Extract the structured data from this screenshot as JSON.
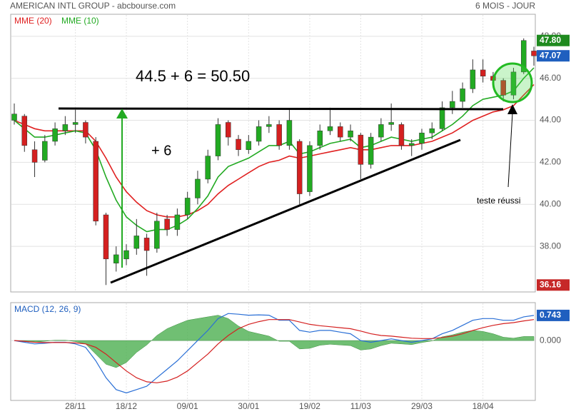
{
  "chart_data": [
    {
      "type": "candlestick",
      "title": "AMERICAN INTL GROUP - abcbourse.com",
      "subtitle": "6 MOIS - JOUR",
      "up_color": "#22aa22",
      "down_color": "#d42020",
      "open": [
        44.0,
        44.2,
        42.6,
        42.1,
        43.0,
        43.5,
        43.8,
        43.9,
        43.0,
        39.5,
        37.2,
        37.4,
        37.9,
        38.4,
        37.9,
        39.3,
        38.8,
        39.5,
        40.3,
        41.2,
        42.3,
        43.9,
        43.1,
        42.6,
        43.0,
        43.7,
        43.8,
        42.8,
        43.0,
        40.6,
        42.8,
        43.5,
        43.7,
        43.2,
        43.3,
        41.9,
        43.2,
        43.8,
        43.8,
        42.8,
        42.9,
        43.4,
        43.6,
        44.6,
        44.9,
        45.5,
        46.4,
        46.1,
        45.9,
        45.2,
        46.3,
        47.3
      ],
      "high": [
        44.8,
        44.3,
        43.0,
        43.3,
        43.9,
        44.2,
        44.5,
        44.0,
        43.2,
        39.6,
        38.0,
        38.1,
        39.3,
        38.6,
        39.6,
        39.5,
        39.8,
        40.6,
        41.6,
        42.6,
        44.1,
        44.0,
        43.3,
        43.3,
        44.0,
        44.2,
        44.0,
        44.5,
        43.1,
        43.0,
        43.8,
        44.6,
        43.9,
        43.8,
        43.4,
        43.4,
        44.1,
        44.8,
        43.9,
        43.1,
        43.6,
        43.9,
        44.9,
        45.4,
        45.8,
        46.9,
        46.9,
        46.3,
        46.0,
        46.5,
        47.9,
        47.5
      ],
      "low": [
        43.8,
        42.5,
        41.3,
        42.0,
        42.8,
        43.3,
        43.4,
        42.9,
        39.0,
        36.16,
        36.8,
        37.1,
        37.6,
        36.6,
        37.7,
        38.5,
        38.5,
        39.3,
        40.0,
        41.0,
        42.1,
        42.8,
        42.3,
        42.4,
        42.8,
        43.4,
        42.6,
        42.6,
        40.0,
        40.4,
        42.6,
        43.3,
        43.0,
        43.0,
        41.2,
        41.7,
        43.0,
        43.5,
        42.6,
        42.3,
        42.6,
        43.1,
        43.5,
        44.3,
        44.6,
        45.3,
        45.8,
        45.6,
        44.9,
        45.0,
        46.2,
        46.6
      ],
      "close": [
        44.3,
        42.8,
        42.0,
        43.0,
        43.6,
        43.8,
        43.9,
        43.2,
        39.2,
        37.4,
        37.6,
        37.8,
        38.5,
        37.8,
        39.2,
        38.8,
        39.5,
        40.3,
        41.2,
        42.3,
        43.8,
        43.2,
        42.6,
        43.0,
        43.7,
        43.8,
        42.8,
        44.0,
        40.5,
        42.8,
        43.5,
        43.7,
        43.2,
        43.5,
        41.9,
        43.2,
        43.8,
        43.9,
        42.8,
        42.9,
        43.4,
        43.6,
        44.6,
        44.9,
        45.5,
        46.4,
        46.1,
        45.9,
        45.2,
        46.3,
        47.8,
        47.07
      ],
      "series": [
        {
          "name": "MME (20)",
          "color": "#e02020",
          "values": [
            44.0,
            43.8,
            43.6,
            43.5,
            43.5,
            43.5,
            43.5,
            43.5,
            43.0,
            42.2,
            41.3,
            40.6,
            40.1,
            39.7,
            39.5,
            39.4,
            39.4,
            39.5,
            39.7,
            40.0,
            40.5,
            40.9,
            41.2,
            41.5,
            41.8,
            42.0,
            42.1,
            42.3,
            42.2,
            42.3,
            42.4,
            42.5,
            42.6,
            42.7,
            42.6,
            42.6,
            42.7,
            42.8,
            42.8,
            42.8,
            42.9,
            43.0,
            43.2,
            43.4,
            43.7,
            44.0,
            44.2,
            44.4,
            44.5,
            44.7,
            45.2,
            45.7
          ]
        },
        {
          "name": "MME (10)",
          "color": "#22aa22",
          "values": [
            44.0,
            43.6,
            43.2,
            43.2,
            43.3,
            43.4,
            43.5,
            43.4,
            42.6,
            41.3,
            40.2,
            39.4,
            39.0,
            38.7,
            38.8,
            38.8,
            39.0,
            39.3,
            39.8,
            40.4,
            41.3,
            41.8,
            42.0,
            42.2,
            42.5,
            42.8,
            42.8,
            43.0,
            42.4,
            42.5,
            42.7,
            42.9,
            43.0,
            43.1,
            42.7,
            42.8,
            43.0,
            43.2,
            43.1,
            43.0,
            43.1,
            43.2,
            43.5,
            43.8,
            44.2,
            44.7,
            45.0,
            45.1,
            45.2,
            45.4,
            46.0,
            46.5
          ]
        }
      ],
      "ylim": [
        36.0,
        48.3
      ],
      "yticks": [
        {
          "value": 38,
          "label": "38.00"
        },
        {
          "value": 40,
          "label": "40.00"
        },
        {
          "value": 42,
          "label": "42.00"
        },
        {
          "value": 44,
          "label": "44.00"
        },
        {
          "value": 46,
          "label": "46.00"
        },
        {
          "value": 48,
          "label": "48.00"
        }
      ],
      "markers": [
        {
          "value": 47.8,
          "label": "47.80",
          "color": "#1f8a1f"
        },
        {
          "value": 47.07,
          "label": "47.07",
          "color": "#1f5fbf"
        },
        {
          "value": 36.16,
          "label": "36.16",
          "color": "#c62828"
        }
      ],
      "annotations": [
        "44.5 + 6 = 50.50",
        "+ 6",
        "teste réussi"
      ],
      "grid": true
    },
    {
      "type": "line",
      "title": "MACD (12, 26, 9)",
      "categories": [
        null,
        null,
        null,
        null,
        null,
        null,
        "28/11",
        null,
        null,
        null,
        null,
        "18/12",
        null,
        null,
        null,
        null,
        null,
        "09/01",
        null,
        null,
        null,
        null,
        null,
        "30/01",
        null,
        null,
        null,
        null,
        null,
        "19/02",
        null,
        null,
        null,
        null,
        "11/03",
        null,
        null,
        null,
        null,
        null,
        "29/03",
        null,
        null,
        null,
        null,
        null,
        "18/04",
        null,
        null,
        null,
        null,
        null
      ],
      "series": [
        {
          "color": "#2a6fd6",
          "values": [
            0.0,
            -0.05,
            -0.1,
            -0.08,
            -0.05,
            -0.05,
            -0.1,
            -0.2,
            -0.6,
            -1.1,
            -1.45,
            -1.55,
            -1.45,
            -1.35,
            -1.1,
            -0.85,
            -0.6,
            -0.3,
            0.0,
            0.3,
            0.65,
            0.8,
            0.78,
            0.75,
            0.76,
            0.75,
            0.6,
            0.6,
            0.3,
            0.25,
            0.3,
            0.3,
            0.25,
            0.2,
            0.0,
            -0.05,
            0.0,
            0.05,
            0.0,
            -0.05,
            0.0,
            0.05,
            0.2,
            0.3,
            0.45,
            0.6,
            0.65,
            0.65,
            0.6,
            0.6,
            0.7,
            0.743
          ]
        },
        {
          "color": "#d42020",
          "values": [
            0.0,
            -0.02,
            -0.05,
            -0.06,
            -0.06,
            -0.06,
            -0.07,
            -0.1,
            -0.2,
            -0.4,
            -0.65,
            -0.9,
            -1.1,
            -1.22,
            -1.25,
            -1.2,
            -1.08,
            -0.9,
            -0.65,
            -0.4,
            -0.1,
            0.15,
            0.35,
            0.48,
            0.56,
            0.62,
            0.62,
            0.62,
            0.55,
            0.48,
            0.44,
            0.41,
            0.38,
            0.35,
            0.28,
            0.2,
            0.15,
            0.13,
            0.1,
            0.07,
            0.06,
            0.06,
            0.09,
            0.13,
            0.2,
            0.3,
            0.38,
            0.45,
            0.5,
            0.53,
            0.58,
            0.62
          ]
        }
      ],
      "histogram": {
        "color": "#4caf50",
        "values": [
          0.0,
          -0.03,
          -0.05,
          -0.02,
          0.01,
          0.01,
          -0.03,
          -0.1,
          -0.4,
          -0.7,
          -0.8,
          -0.65,
          -0.35,
          -0.13,
          0.15,
          0.35,
          0.48,
          0.6,
          0.65,
          0.7,
          0.75,
          0.65,
          0.43,
          0.27,
          0.2,
          0.13,
          -0.02,
          -0.02,
          -0.25,
          -0.23,
          -0.14,
          -0.11,
          -0.13,
          -0.15,
          -0.28,
          -0.25,
          -0.15,
          -0.08,
          -0.1,
          -0.12,
          -0.06,
          -0.01,
          0.11,
          0.17,
          0.25,
          0.3,
          0.27,
          0.2,
          0.1,
          0.07,
          0.12,
          0.12
        ]
      },
      "ylim": [
        -1.75,
        1.1
      ],
      "yticks": [
        {
          "value": 0,
          "label": "0.000"
        }
      ],
      "markers": [
        {
          "value": 0.743,
          "label": "0.743",
          "color": "#1f5fbf"
        }
      ]
    }
  ]
}
